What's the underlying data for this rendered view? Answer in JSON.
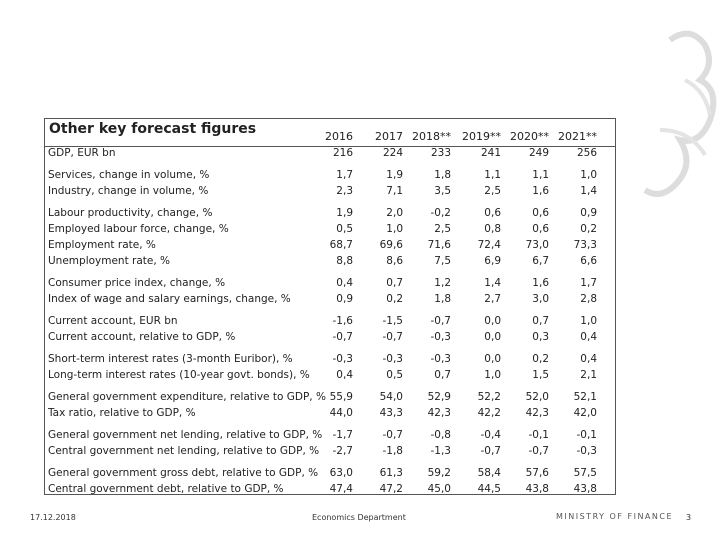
{
  "table": {
    "title": "Other key forecast figures",
    "years": [
      "2016",
      "2017",
      "2018**",
      "2019**",
      "2020**",
      "2021**"
    ],
    "groups": [
      {
        "rows": [
          {
            "label": "GDP, EUR bn",
            "values": [
              "216",
              "224",
              "233",
              "241",
              "249",
              "256"
            ]
          }
        ]
      },
      {
        "rows": [
          {
            "label": "Services, change in volume, %",
            "values": [
              "1,7",
              "1,9",
              "1,8",
              "1,1",
              "1,1",
              "1,0"
            ]
          },
          {
            "label": "Industry, change in volume, %",
            "values": [
              "2,3",
              "7,1",
              "3,5",
              "2,5",
              "1,6",
              "1,4"
            ]
          }
        ]
      },
      {
        "rows": [
          {
            "label": "Labour productivity, change, %",
            "values": [
              "1,9",
              "2,0",
              "-0,2",
              "0,6",
              "0,6",
              "0,9"
            ]
          },
          {
            "label": "Employed labour force, change, %",
            "values": [
              "0,5",
              "1,0",
              "2,5",
              "0,8",
              "0,6",
              "0,2"
            ]
          },
          {
            "label": "Employment rate, %",
            "values": [
              "68,7",
              "69,6",
              "71,6",
              "72,4",
              "73,0",
              "73,3"
            ]
          },
          {
            "label": "Unemployment rate, %",
            "values": [
              "8,8",
              "8,6",
              "7,5",
              "6,9",
              "6,7",
              "6,6"
            ]
          }
        ]
      },
      {
        "rows": [
          {
            "label": "Consumer price index, change, %",
            "values": [
              "0,4",
              "0,7",
              "1,2",
              "1,4",
              "1,6",
              "1,7"
            ]
          },
          {
            "label": "Index of wage and salary earnings, change, %",
            "values": [
              "0,9",
              "0,2",
              "1,8",
              "2,7",
              "3,0",
              "2,8"
            ]
          }
        ]
      },
      {
        "rows": [
          {
            "label": "Current account, EUR bn",
            "values": [
              "-1,6",
              "-1,5",
              "-0,7",
              "0,0",
              "0,7",
              "1,0"
            ]
          },
          {
            "label": "Current account, relative to GDP, %",
            "values": [
              "-0,7",
              "-0,7",
              "-0,3",
              "0,0",
              "0,3",
              "0,4"
            ]
          }
        ]
      },
      {
        "rows": [
          {
            "label": "Short-term interest rates (3-month Euribor), %",
            "values": [
              "-0,3",
              "-0,3",
              "-0,3",
              "0,0",
              "0,2",
              "0,4"
            ]
          },
          {
            "label": "Long-term interest rates (10-year govt. bonds), %",
            "values": [
              "0,4",
              "0,5",
              "0,7",
              "1,0",
              "1,5",
              "2,1"
            ]
          }
        ]
      },
      {
        "rows": [
          {
            "label": "General government expenditure, relative to GDP, %",
            "values": [
              "55,9",
              "54,0",
              "52,9",
              "52,2",
              "52,0",
              "52,1"
            ]
          },
          {
            "label": "Tax ratio, relative to GDP, %",
            "values": [
              "44,0",
              "43,3",
              "42,3",
              "42,2",
              "42,3",
              "42,0"
            ]
          }
        ]
      },
      {
        "rows": [
          {
            "label": "General government net lending, relative to GDP, %",
            "values": [
              "-1,7",
              "-0,7",
              "-0,8",
              "-0,4",
              "-0,1",
              "-0,1"
            ]
          },
          {
            "label": "Central government net lending, relative to GDP, %",
            "values": [
              "-2,7",
              "-1,8",
              "-1,3",
              "-0,7",
              "-0,7",
              "-0,3"
            ]
          }
        ]
      },
      {
        "rows": [
          {
            "label": "General government gross debt, relative to GDP, %",
            "values": [
              "63,0",
              "61,3",
              "59,2",
              "58,4",
              "57,6",
              "57,5"
            ]
          },
          {
            "label": "Central government debt, relative to GDP, %",
            "values": [
              "47,4",
              "47,2",
              "45,0",
              "44,5",
              "43,8",
              "43,8"
            ]
          }
        ]
      }
    ]
  },
  "footer": {
    "date": "17.12.2018",
    "department": "Economics Department",
    "ministry": "MINISTRY OF FINANCE",
    "page": "3"
  }
}
